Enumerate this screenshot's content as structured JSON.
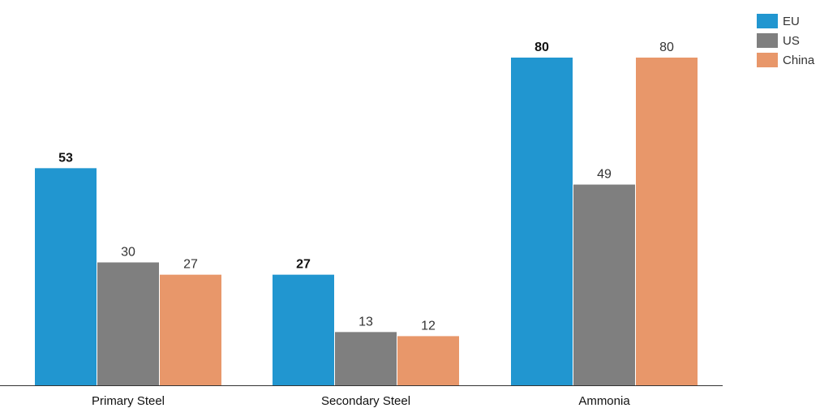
{
  "chart_data": {
    "type": "bar",
    "categories": [
      "Primary Steel",
      "Secondary Steel",
      "Ammonia"
    ],
    "series": [
      {
        "name": "EU",
        "values": [
          53,
          27,
          80
        ],
        "color": "#2196D0",
        "label_bold": true
      },
      {
        "name": "US",
        "values": [
          30,
          13,
          49
        ],
        "color": "#7F7F7F",
        "label_bold": false
      },
      {
        "name": "China",
        "values": [
          27,
          12,
          80
        ],
        "color": "#E8976A",
        "label_bold": false
      }
    ],
    "ylim": [
      0,
      80
    ],
    "grid": false,
    "legend_position": "top-right"
  }
}
